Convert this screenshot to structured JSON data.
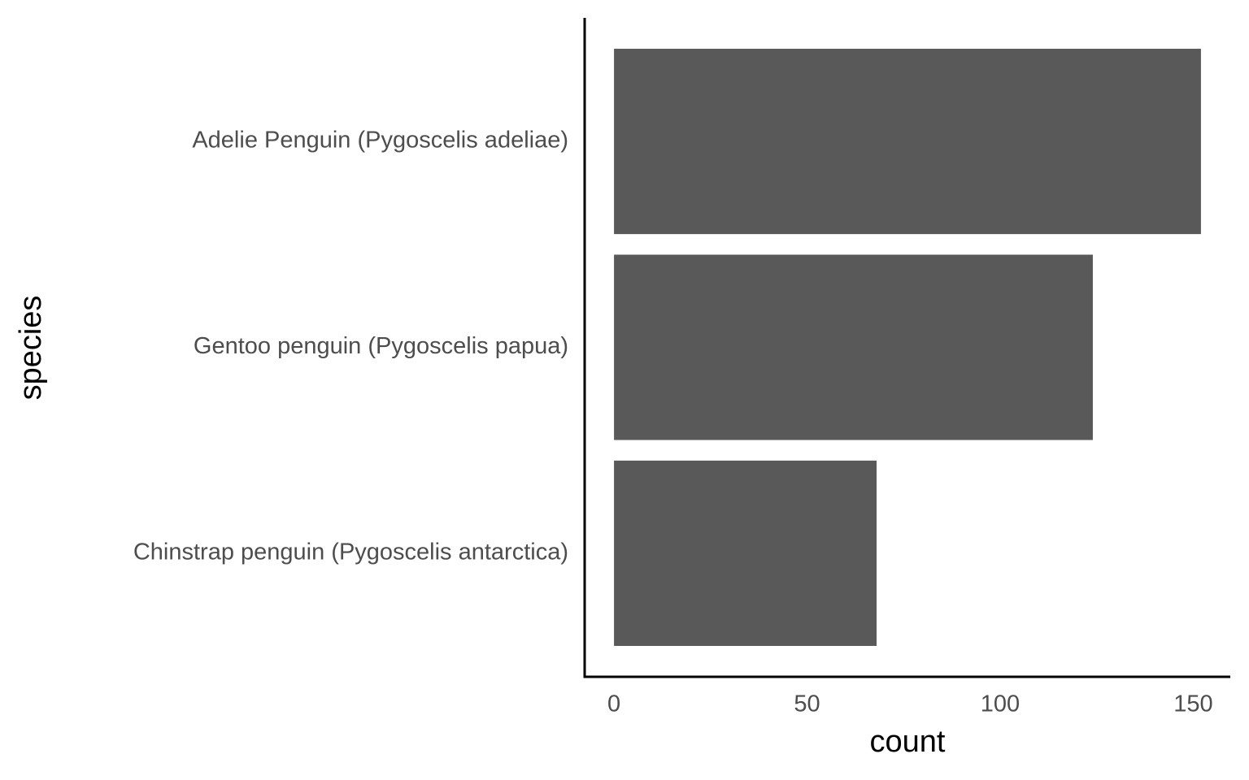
{
  "chart_data": {
    "type": "bar",
    "orientation": "horizontal",
    "categories": [
      "Adelie Penguin (Pygoscelis adeliae)",
      "Gentoo penguin (Pygoscelis papua)",
      "Chinstrap penguin (Pygoscelis antarctica)"
    ],
    "values": [
      152,
      124,
      68
    ],
    "color": "#595959",
    "xlim": [
      -7.6,
      159.6
    ],
    "xticks": [
      0,
      50,
      100,
      150
    ],
    "x_label": "count",
    "y_label": "species",
    "grid": false
  }
}
